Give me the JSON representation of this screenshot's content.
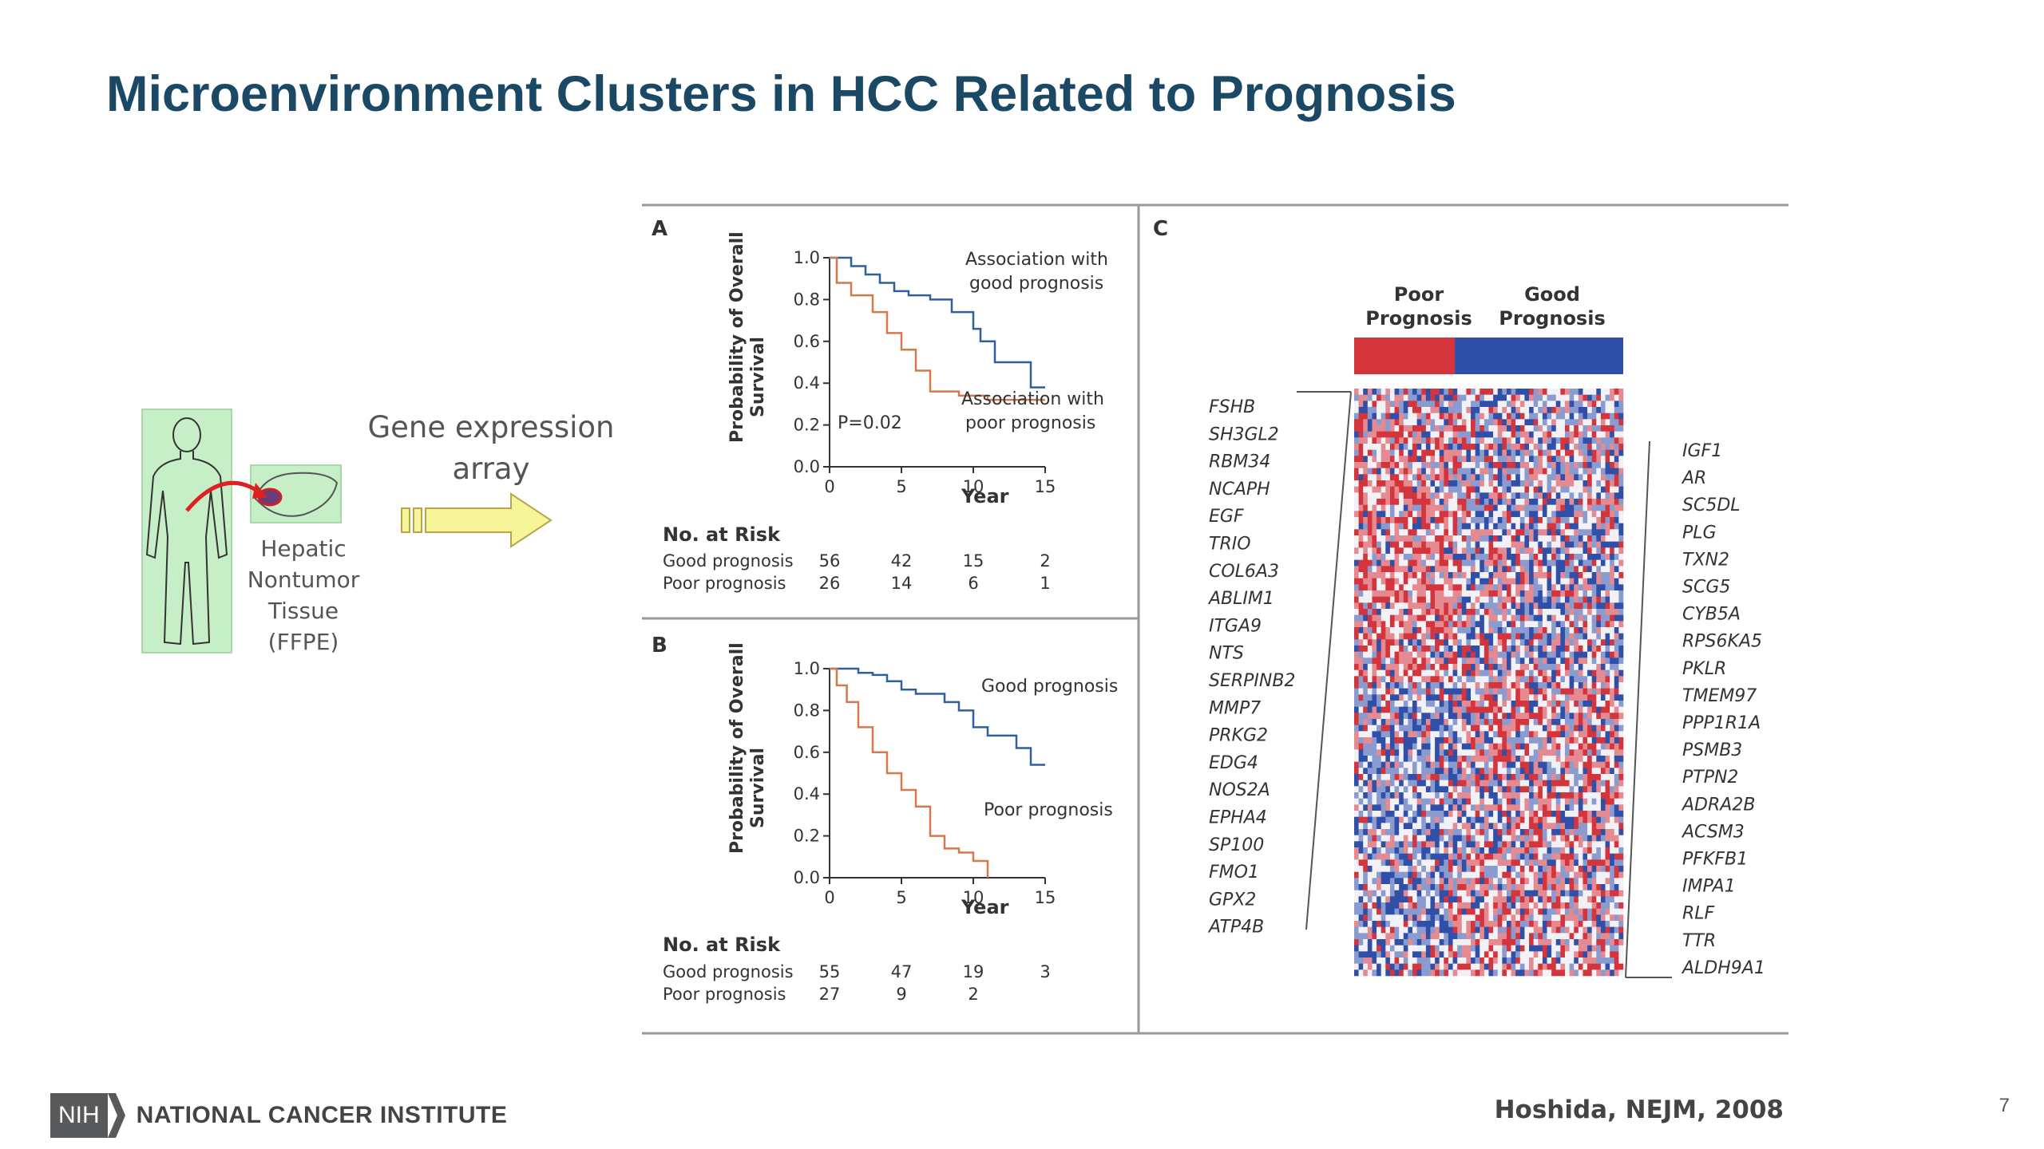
{
  "slide": {
    "title": "Microenvironment Clusters in HCC Related to Prognosis",
    "page_number": "7",
    "citation": "Hoshida, NEJM, 2008",
    "logo": {
      "nih": "NIH",
      "institute": "NATIONAL CANCER INSTITUTE"
    }
  },
  "left_graphic": {
    "tissue_label": [
      "Hepatic",
      "Nontumor",
      "Tissue",
      "(FFPE)"
    ],
    "arrow_label": [
      "Gene expression",
      "array"
    ],
    "colors": {
      "body_bg": "#c7efc7",
      "arrow_fill": "#f7f59a",
      "arrow_stroke": "#b8a44a",
      "pointer": "#e02020"
    }
  },
  "figure": {
    "panel_labels": {
      "a": "A",
      "b": "B",
      "c": "C"
    },
    "ylabel": [
      "Probability of Overall",
      "Survival"
    ],
    "xlabel": "Year",
    "yticks": [
      "0.0",
      "0.2",
      "0.4",
      "0.6",
      "0.8",
      "1.0"
    ],
    "xticks": [
      "0",
      "5",
      "10",
      "15"
    ],
    "risk_title": "No. at Risk",
    "colors": {
      "good": "#2f5f9e",
      "poor": "#d27a4c",
      "heat_red": "#d4343c",
      "heat_blue": "#2f4fa8"
    }
  },
  "chart_data": [
    {
      "type": "line",
      "panel": "A",
      "xlabel": "Year",
      "ylabel": "Probability of Overall Survival",
      "xlim": [
        0,
        15
      ],
      "ylim": [
        0,
        1
      ],
      "annotation": "P=0.02",
      "series": [
        {
          "name": "Association with good prognosis",
          "x": [
            0,
            0.8,
            1.5,
            2.5,
            3.5,
            4.5,
            5.5,
            7,
            8.5,
            10,
            10.5,
            11.5,
            14,
            15
          ],
          "y": [
            1.0,
            1.0,
            0.96,
            0.92,
            0.88,
            0.84,
            0.82,
            0.8,
            0.74,
            0.66,
            0.6,
            0.5,
            0.38,
            0.38
          ]
        },
        {
          "name": "Association with poor prognosis",
          "x": [
            0,
            0.5,
            1.5,
            3,
            4,
            5,
            6,
            7,
            9,
            10,
            11,
            13,
            15
          ],
          "y": [
            1.0,
            0.88,
            0.82,
            0.74,
            0.64,
            0.56,
            0.46,
            0.36,
            0.34,
            0.34,
            0.32,
            0.32,
            0.32
          ]
        }
      ],
      "risk_table": {
        "title": "No. at Risk",
        "rows": [
          {
            "label": "Good prognosis",
            "values": [
              "56",
              "42",
              "15",
              "2"
            ]
          },
          {
            "label": "Poor prognosis",
            "values": [
              "26",
              "14",
              "6",
              "1"
            ]
          }
        ]
      }
    },
    {
      "type": "line",
      "panel": "B",
      "xlabel": "Year",
      "ylabel": "Probability of Overall Survival",
      "xlim": [
        0,
        15
      ],
      "ylim": [
        0,
        1
      ],
      "series": [
        {
          "name": "Good prognosis",
          "x": [
            0,
            1,
            2,
            3,
            4,
            5,
            6,
            7,
            8,
            9,
            10,
            11,
            13,
            14,
            15
          ],
          "y": [
            1.0,
            1.0,
            0.98,
            0.97,
            0.94,
            0.9,
            0.88,
            0.88,
            0.84,
            0.8,
            0.72,
            0.68,
            0.62,
            0.54,
            0.54
          ]
        },
        {
          "name": "Poor prognosis",
          "x": [
            0,
            0.5,
            1.2,
            2,
            3,
            4,
            5,
            6,
            7,
            8,
            9,
            10,
            11
          ],
          "y": [
            1.0,
            0.92,
            0.84,
            0.72,
            0.6,
            0.5,
            0.42,
            0.34,
            0.2,
            0.14,
            0.12,
            0.08,
            0.0
          ]
        }
      ],
      "risk_table": {
        "title": "No. at Risk",
        "rows": [
          {
            "label": "Good prognosis",
            "values": [
              "55",
              "47",
              "19",
              "3"
            ]
          },
          {
            "label": "Poor prognosis",
            "values": [
              "27",
              "9",
              "2",
              ""
            ]
          }
        ]
      }
    },
    {
      "type": "heatmap",
      "panel": "C",
      "columns": [
        "Poor Prognosis",
        "Good Prognosis"
      ],
      "poor_genes": [
        "FSHB",
        "SH3GL2",
        "RBM34",
        "NCAPH",
        "EGF",
        "TRIO",
        "COL6A3",
        "ABLIM1",
        "ITGA9",
        "NTS",
        "SERPINB2",
        "MMP7",
        "PRKG2",
        "EDG4",
        "NOS2A",
        "EPHA4",
        "SP100",
        "FMO1",
        "GPX2",
        "ATP4B"
      ],
      "good_genes": [
        "IGF1",
        "AR",
        "SC5DL",
        "PLG",
        "TXN2",
        "SCG5",
        "CYB5A",
        "RPS6KA5",
        "PKLR",
        "TMEM97",
        "PPP1R1A",
        "PSMB3",
        "PTPN2",
        "ADRA2B",
        "ACSM3",
        "PFKFB1",
        "IMPA1",
        "RLF",
        "TTR",
        "ALDH9A1"
      ]
    }
  ]
}
